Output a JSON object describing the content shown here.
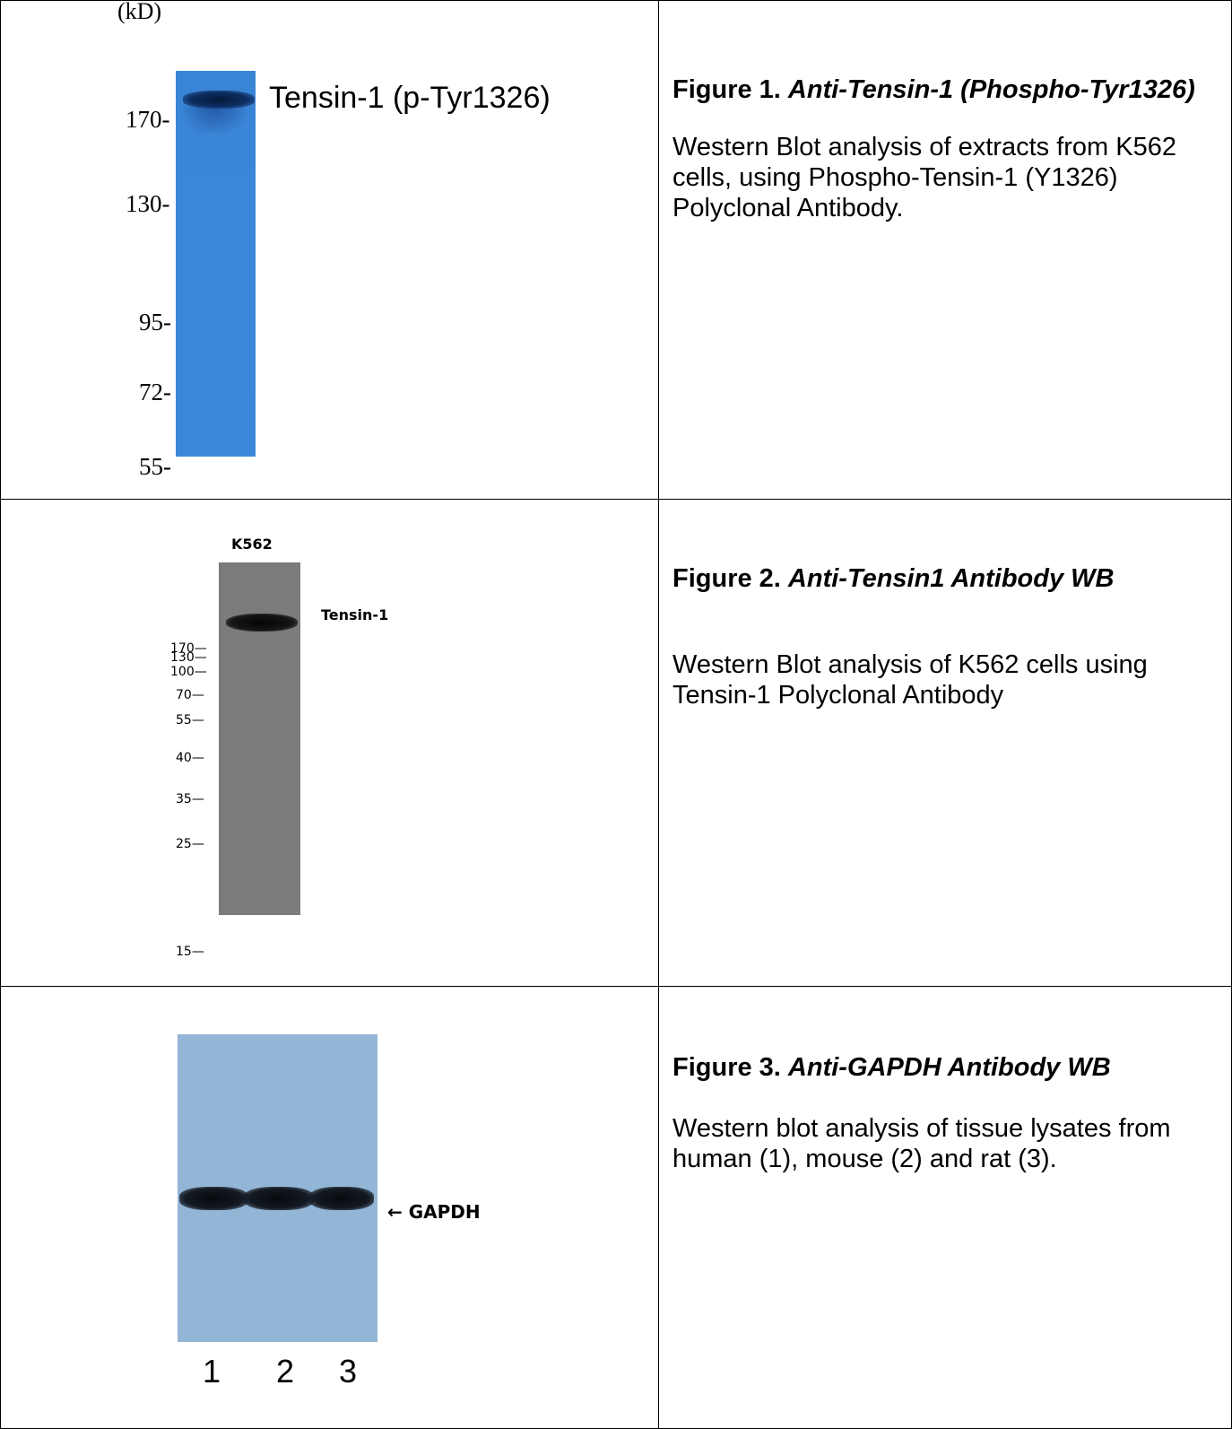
{
  "figure1": {
    "unit_label": "(kD)",
    "markers": [
      "170-",
      "130-",
      "95-",
      "72-",
      "55-"
    ],
    "band_label": "Tensin-1 (p-Tyr1326)",
    "caption_title_prefix": "Figure 1.",
    "caption_title_italic": "Anti-Tensin-1 (Phospho-Tyr1326)",
    "caption_body": "Western Blot analysis of extracts from K562 cells, using Phospho-Tensin-1 (Y1326) Polyclonal Antibody.",
    "blot_color": "#3a86d8"
  },
  "figure2": {
    "lane_label": "K562",
    "markers": [
      "170—",
      "130—",
      "100—",
      "70—",
      "55—",
      "40—",
      "35—",
      "25—",
      "15—"
    ],
    "band_label": "Tensin-1",
    "caption_title_prefix": "Figure 2.",
    "caption_title_italic": "Anti-Tensin1 Antibody WB",
    "caption_body": "Western Blot analysis of K562 cells using Tensin-1 Polyclonal Antibody",
    "blot_color": "#7b7b7b"
  },
  "figure3": {
    "band_label": "← GAPDH",
    "lanes": [
      "1",
      "2",
      "3"
    ],
    "caption_title_prefix": "Figure 3.",
    "caption_title_italic": "Anti-GAPDH Antibody WB",
    "caption_body": "Western blot analysis of tissue lysates from human (1), mouse (2) and rat (3).",
    "blot_color": "#93b6d7"
  }
}
